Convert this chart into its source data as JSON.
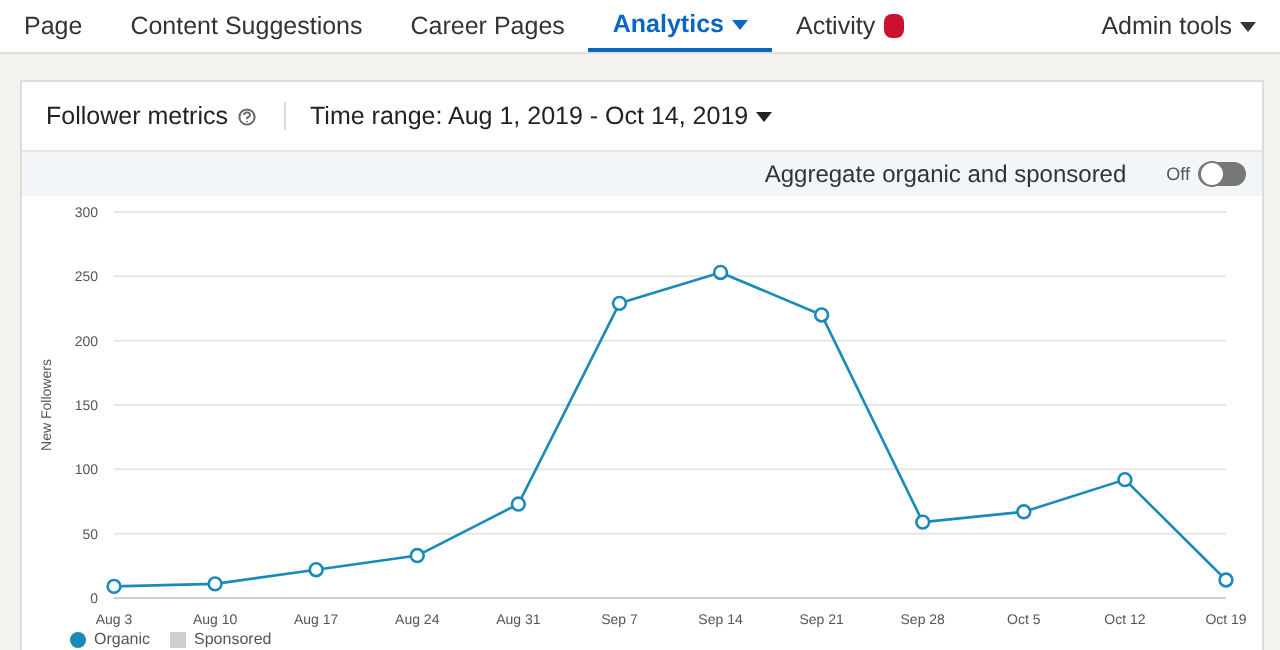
{
  "chart_data": {
    "type": "line",
    "title": "Follower metrics",
    "subtitle": "Time range: Aug 1, 2019 - Oct 14, 2019",
    "ylabel": "New Followers",
    "annotations": [
      "Page",
      "Content Suggestions",
      "Career Pages",
      "Analytics",
      "Activity",
      "Admin tools",
      "Aggregate organic and sponsored",
      "Off"
    ],
    "categories": [
      "Aug 3",
      "Aug 10",
      "Aug 17",
      "Aug 24",
      "Aug 31",
      "Sep 7",
      "Sep 14",
      "Sep 21",
      "Sep 28",
      "Oct 5",
      "Oct 12",
      "Oct 19"
    ],
    "series": [
      {
        "name": "Organic",
        "color": "#1a8ab8",
        "values": [
          9,
          11,
          22,
          33,
          73,
          229,
          253,
          220,
          59,
          67,
          92,
          14
        ]
      },
      {
        "name": "Sponsored",
        "color": "#cfcfcf",
        "values": [
          null,
          null,
          null,
          null,
          null,
          null,
          null,
          null,
          null,
          null,
          null,
          null
        ]
      }
    ],
    "ylim": [
      0,
      300
    ],
    "yticks": [
      0,
      50,
      100,
      150,
      200,
      250,
      300
    ],
    "grid": "y",
    "legend": "bottom left",
    "marker": "circle",
    "line_style": "solid"
  }
}
